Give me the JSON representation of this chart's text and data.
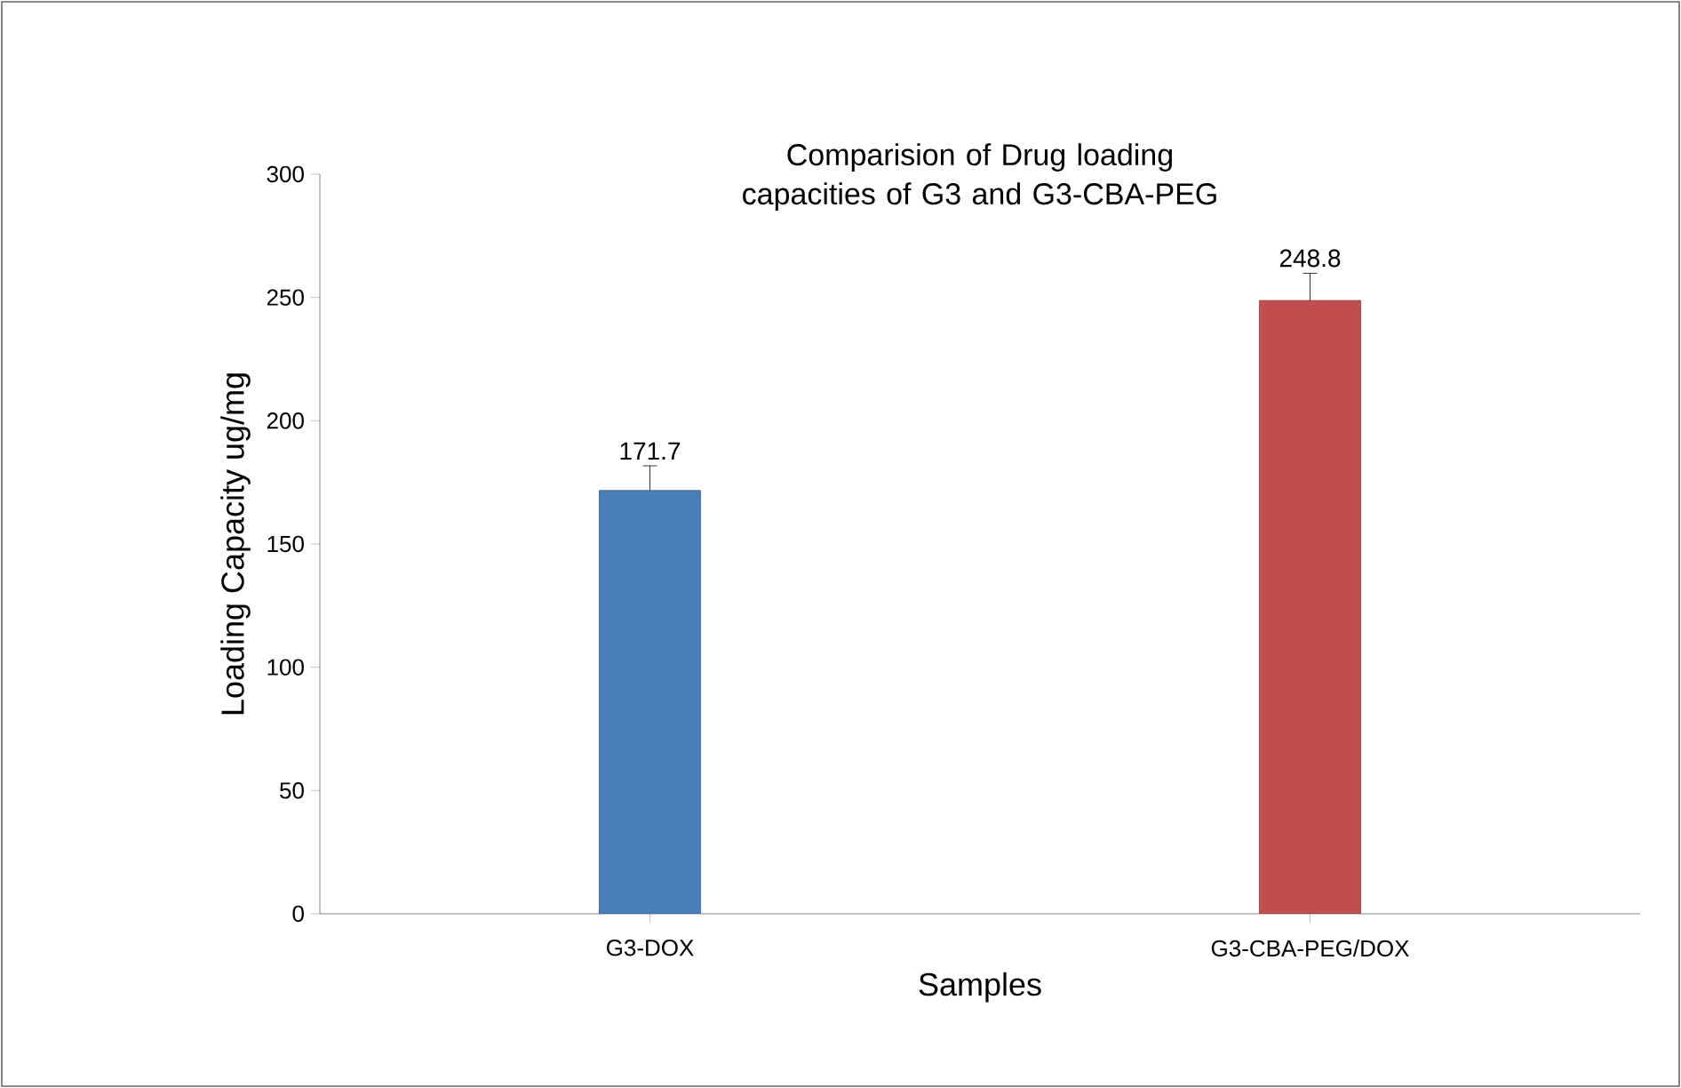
{
  "chart_data": {
    "type": "bar",
    "title": "Comparision of Drug loading capacities of G3 and G3-CBA-PEG",
    "xlabel": "Samples",
    "ylabel": "Loading Capacity ug/mg",
    "categories": [
      "G3-DOX",
      "G3-CBA-PEG/DOX"
    ],
    "values": [
      171.7,
      248.8
    ],
    "colors": [
      "#4a7ebb",
      "#c0504d"
    ],
    "errors": [
      10,
      11
    ],
    "data_labels": true,
    "ylim": [
      0,
      300
    ],
    "yticks": [
      0,
      50,
      100,
      150,
      200,
      250,
      300
    ],
    "grid": false
  }
}
